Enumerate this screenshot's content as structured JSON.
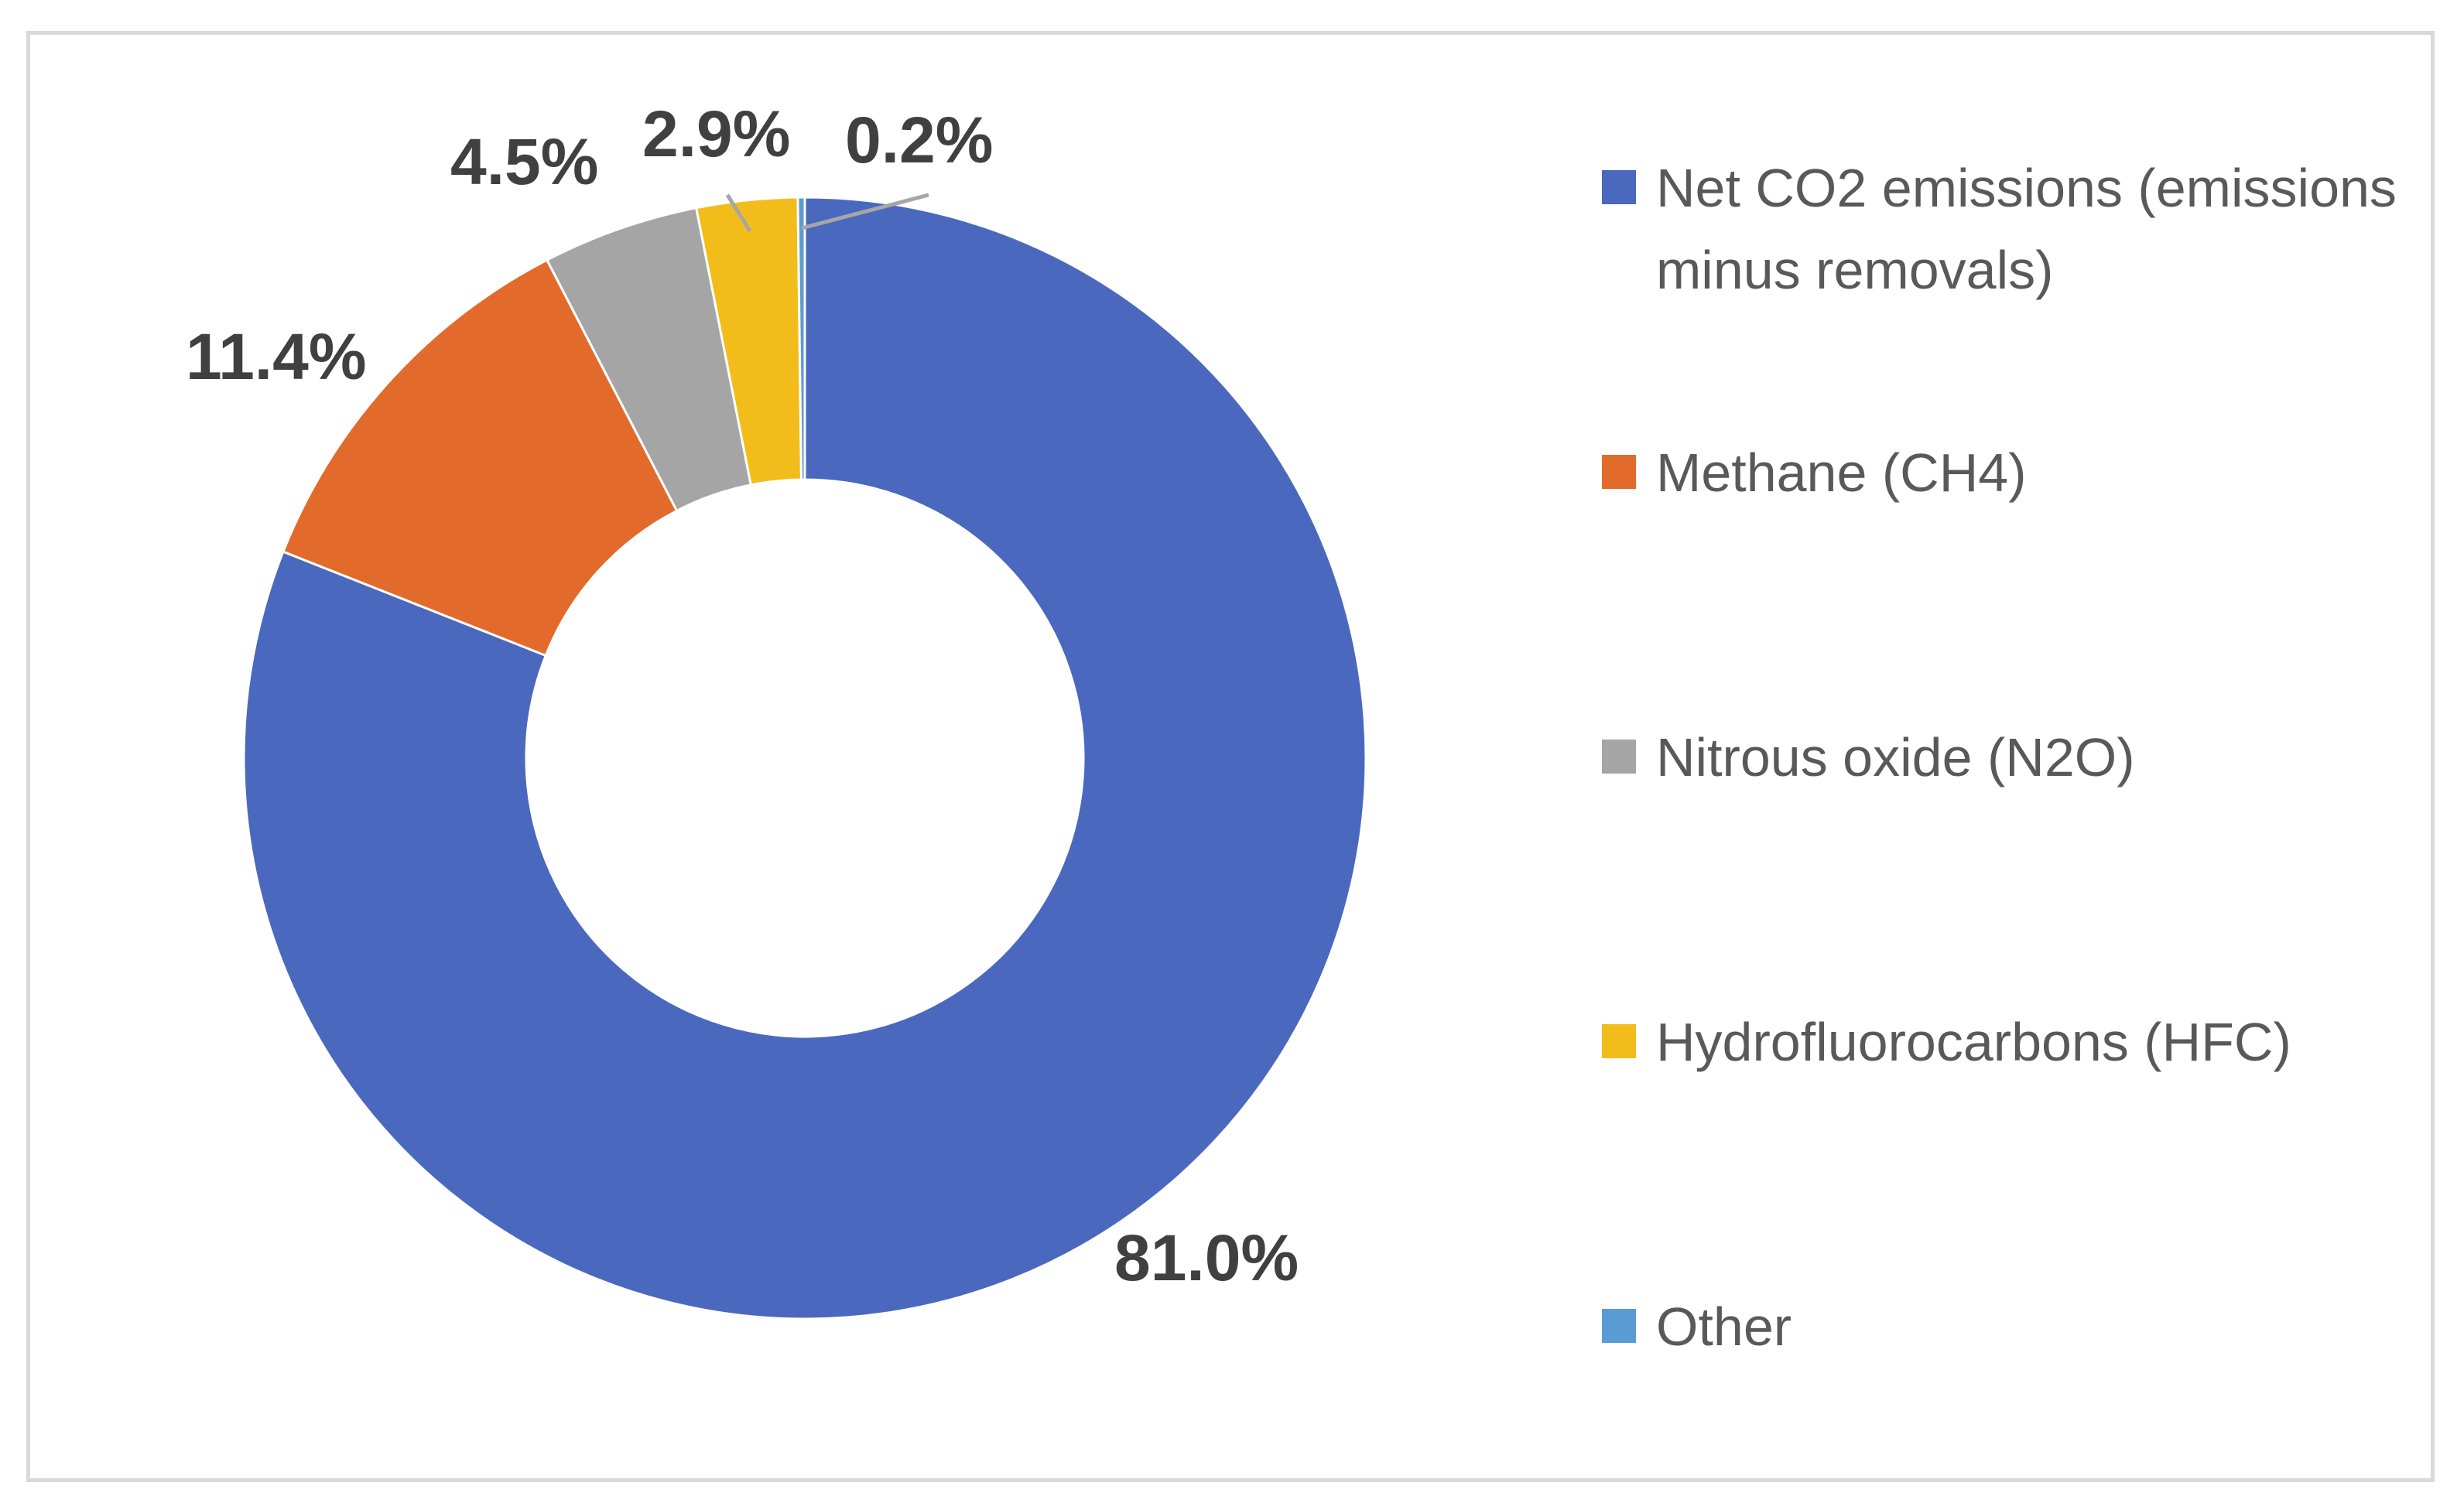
{
  "chart_data": {
    "type": "pie",
    "variant": "donut",
    "categories": [
      "Net CO2 emissions (emissions minus removals)",
      "Methane (CH4)",
      "Nitrous oxide (N2O)",
      "Hydrofluorocarbons (HFC)",
      "Other"
    ],
    "values": [
      81.0,
      11.4,
      4.5,
      2.9,
      0.2
    ],
    "data_labels": [
      "81.0%",
      "11.4%",
      "4.5%",
      "2.9%",
      "0.2%"
    ],
    "colors": [
      "#4a68bd",
      "#e26b2c",
      "#a5a5a5",
      "#f2bc1b",
      "#5b9bd5"
    ],
    "legend_position": "right",
    "title": ""
  }
}
